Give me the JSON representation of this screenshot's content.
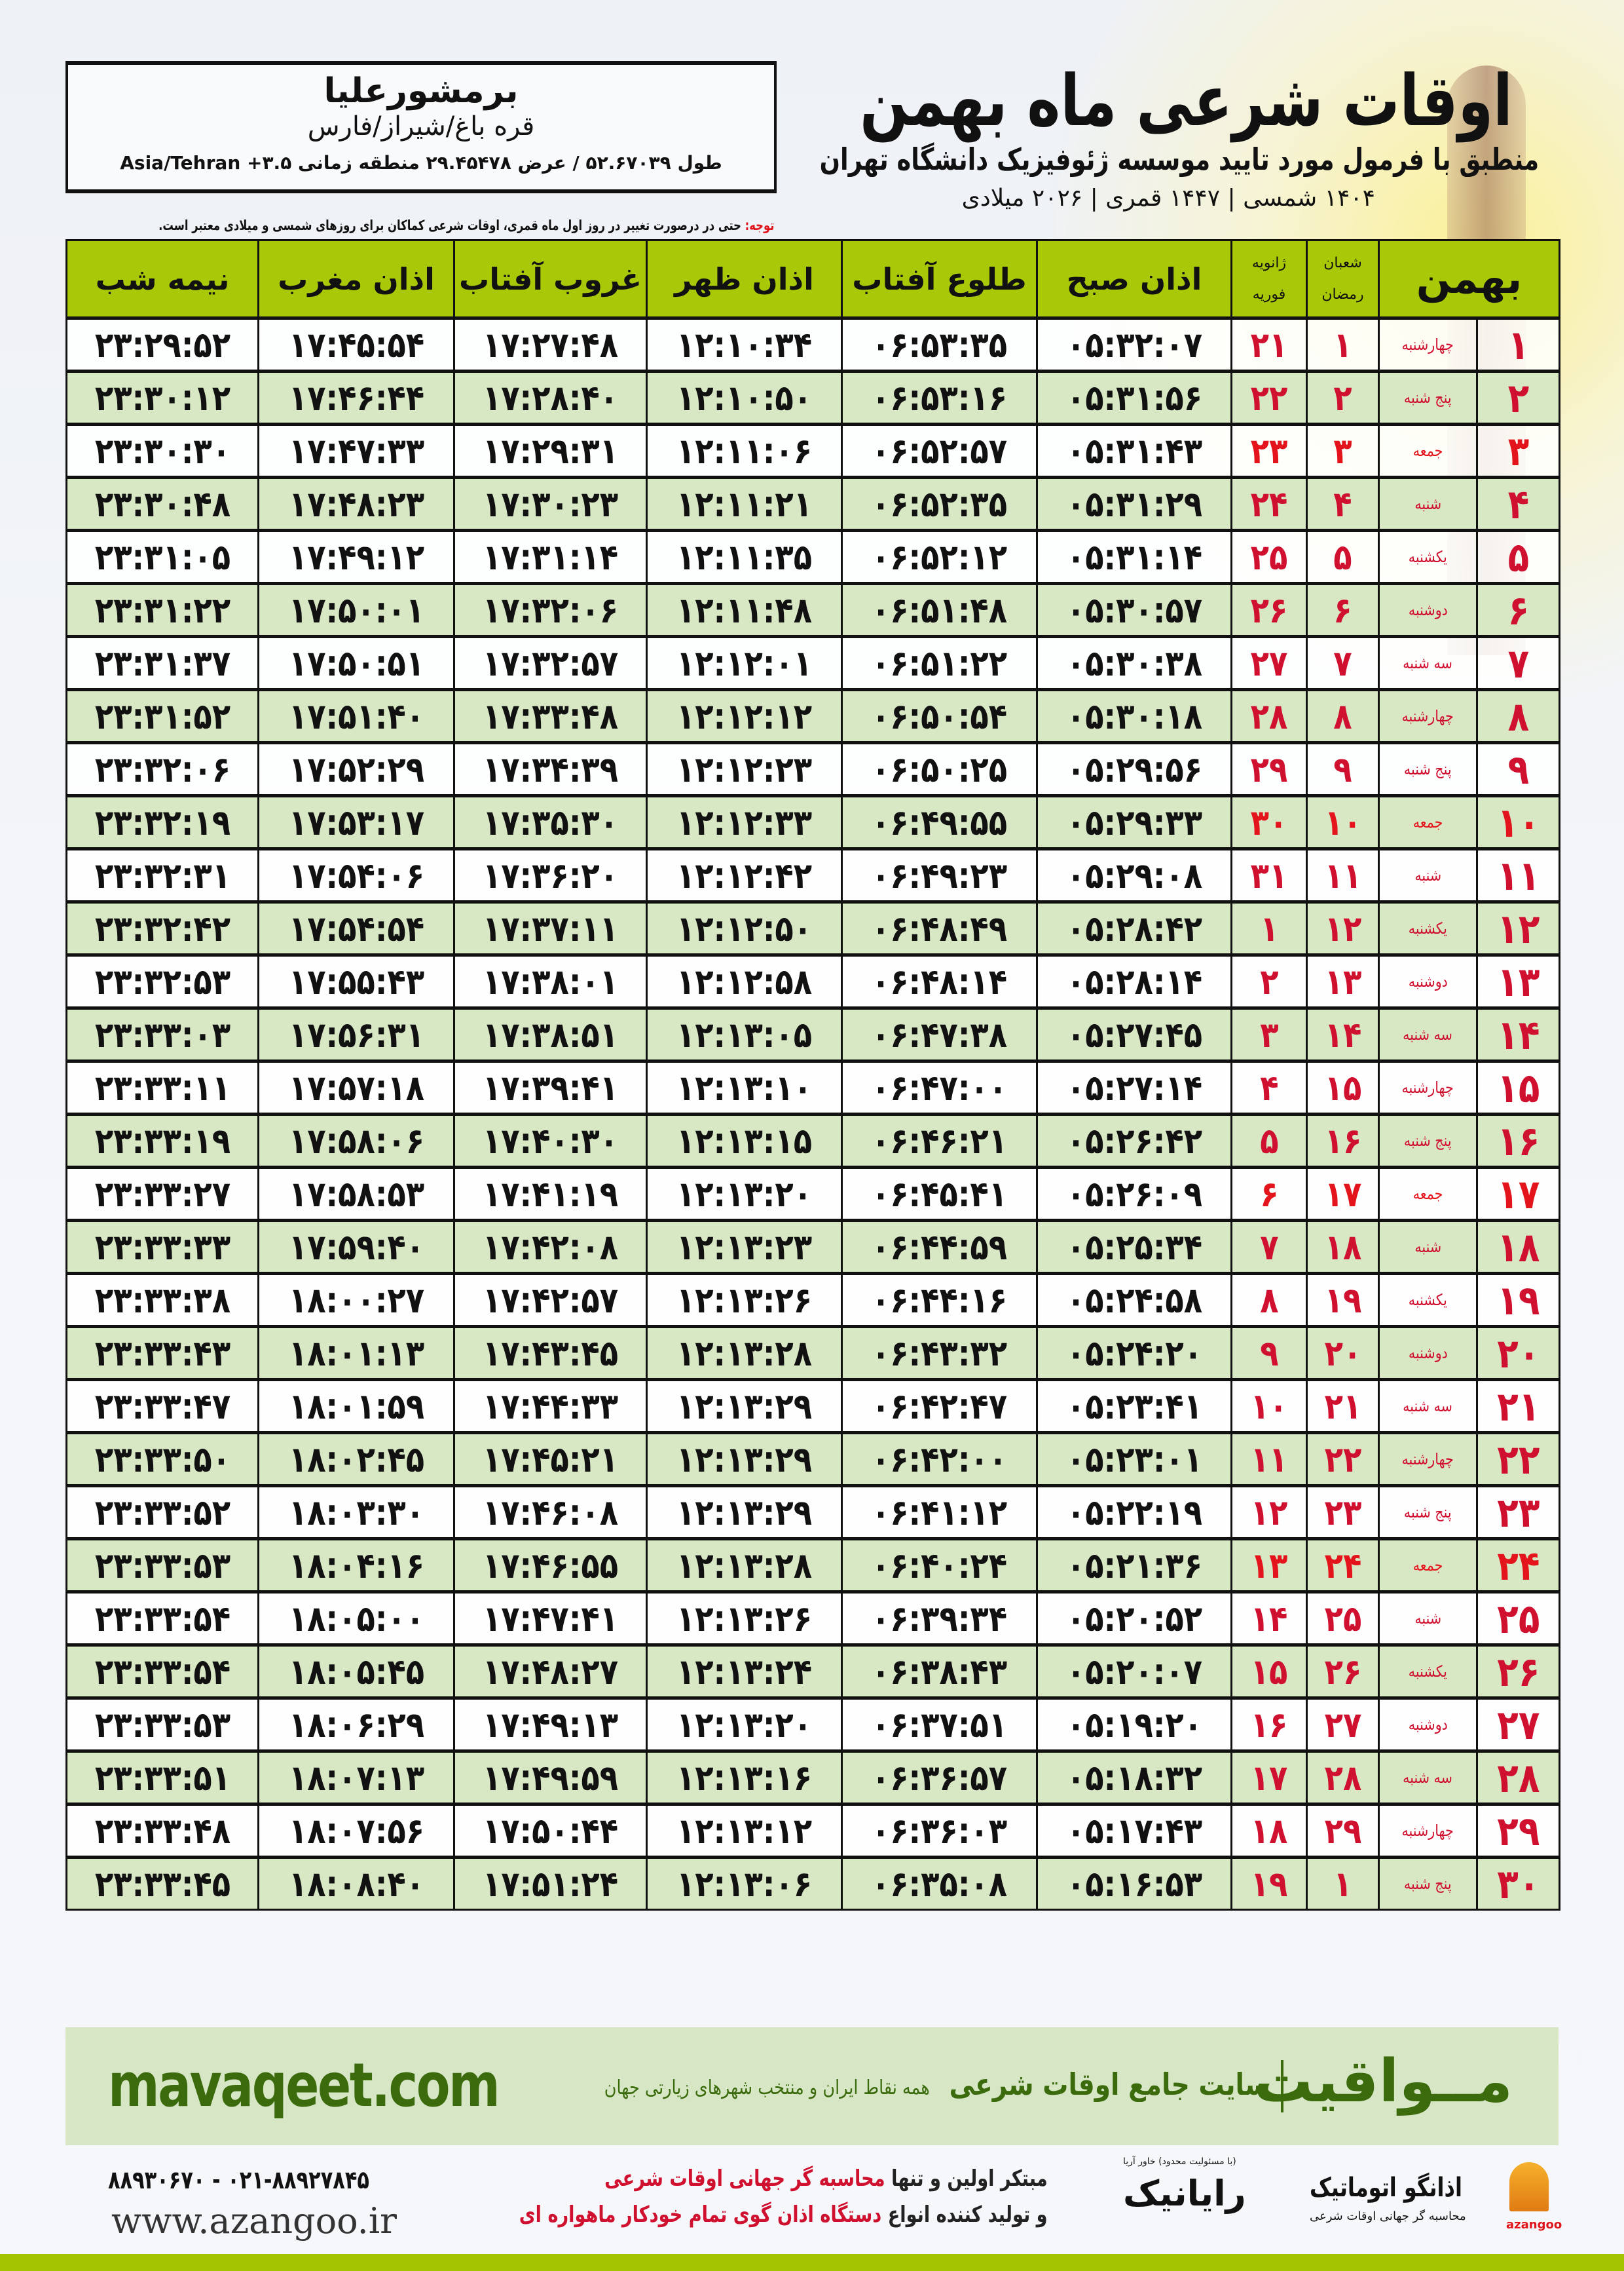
{
  "location": {
    "name": "برمشورعلیا",
    "region": "قره باغ/شیراز/فارس",
    "coords": "طول ۵۲.۶۷۰۳۹ / عرض ۲۹.۴۵۴۷۸ منطقه زمانی ۳.۵+ Asia/Tehran"
  },
  "header": {
    "title": "اوقات شرعی ماه بهمن",
    "subtitle": "منطبق با فرمول مورد تایید موسسه ژئوفیزیک دانشگاه تهران",
    "years": "۱۴۰۴ شمسی | ۱۴۴۷ قمری | ۲۰۲۶ میلادی"
  },
  "notice": {
    "label": "توجه:",
    "text": " حتی در درصورت تغییر در روز اول ماه قمری، اوقات شرعی کماکان برای روزهای شمسی و میلادی معتبر است."
  },
  "table": {
    "columns": {
      "month": "بهمن",
      "hijri_top": "شعبان",
      "hijri_bottom": "رمضان",
      "greg_top": "ژانویه",
      "greg_bottom": "فوریه",
      "fajr": "اذان صبح",
      "sunrise": "طلوع آفتاب",
      "dhuhr": "اذان ظهر",
      "sunset": "غروب آفتاب",
      "maghrib": "اذان مغرب",
      "midnight": "نیمه شب"
    },
    "holiday_color": "#e3141b",
    "rows": [
      {
        "day": "۱",
        "weekday": "چهارشنبه",
        "hijri": "۱",
        "greg": "۲۱",
        "fajr": "۰۵:۳۲:۰۷",
        "sunrise": "۰۶:۵۳:۳۵",
        "dhuhr": "۱۲:۱۰:۳۴",
        "sunset": "۱۷:۲۷:۴۸",
        "maghrib": "۱۷:۴۵:۵۴",
        "midnight": "۲۳:۲۹:۵۲"
      },
      {
        "day": "۲",
        "weekday": "پنج شنبه",
        "hijri": "۲",
        "greg": "۲۲",
        "fajr": "۰۵:۳۱:۵۶",
        "sunrise": "۰۶:۵۳:۱۶",
        "dhuhr": "۱۲:۱۰:۵۰",
        "sunset": "۱۷:۲۸:۴۰",
        "maghrib": "۱۷:۴۶:۴۴",
        "midnight": "۲۳:۳۰:۱۲"
      },
      {
        "day": "۳",
        "weekday": "جمعه",
        "holiday": true,
        "hijri": "۳",
        "greg": "۲۳",
        "fajr": "۰۵:۳۱:۴۳",
        "sunrise": "۰۶:۵۲:۵۷",
        "dhuhr": "۱۲:۱۱:۰۶",
        "sunset": "۱۷:۲۹:۳۱",
        "maghrib": "۱۷:۴۷:۳۳",
        "midnight": "۲۳:۳۰:۳۰"
      },
      {
        "day": "۴",
        "weekday": "شنبه",
        "hijri": "۴",
        "greg": "۲۴",
        "fajr": "۰۵:۳۱:۲۹",
        "sunrise": "۰۶:۵۲:۳۵",
        "dhuhr": "۱۲:۱۱:۲۱",
        "sunset": "۱۷:۳۰:۲۳",
        "maghrib": "۱۷:۴۸:۲۳",
        "midnight": "۲۳:۳۰:۴۸"
      },
      {
        "day": "۵",
        "weekday": "یکشنبه",
        "hijri": "۵",
        "greg": "۲۵",
        "fajr": "۰۵:۳۱:۱۴",
        "sunrise": "۰۶:۵۲:۱۲",
        "dhuhr": "۱۲:۱۱:۳۵",
        "sunset": "۱۷:۳۱:۱۴",
        "maghrib": "۱۷:۴۹:۱۲",
        "midnight": "۲۳:۳۱:۰۵"
      },
      {
        "day": "۶",
        "weekday": "دوشنبه",
        "hijri": "۶",
        "greg": "۲۶",
        "fajr": "۰۵:۳۰:۵۷",
        "sunrise": "۰۶:۵۱:۴۸",
        "dhuhr": "۱۲:۱۱:۴۸",
        "sunset": "۱۷:۳۲:۰۶",
        "maghrib": "۱۷:۵۰:۰۱",
        "midnight": "۲۳:۳۱:۲۲"
      },
      {
        "day": "۷",
        "weekday": "سه شنبه",
        "hijri": "۷",
        "greg": "۲۷",
        "fajr": "۰۵:۳۰:۳۸",
        "sunrise": "۰۶:۵۱:۲۲",
        "dhuhr": "۱۲:۱۲:۰۱",
        "sunset": "۱۷:۳۲:۵۷",
        "maghrib": "۱۷:۵۰:۵۱",
        "midnight": "۲۳:۳۱:۳۷"
      },
      {
        "day": "۸",
        "weekday": "چهارشنبه",
        "hijri": "۸",
        "greg": "۲۸",
        "fajr": "۰۵:۳۰:۱۸",
        "sunrise": "۰۶:۵۰:۵۴",
        "dhuhr": "۱۲:۱۲:۱۲",
        "sunset": "۱۷:۳۳:۴۸",
        "maghrib": "۱۷:۵۱:۴۰",
        "midnight": "۲۳:۳۱:۵۲"
      },
      {
        "day": "۹",
        "weekday": "پنج شنبه",
        "hijri": "۹",
        "greg": "۲۹",
        "fajr": "۰۵:۲۹:۵۶",
        "sunrise": "۰۶:۵۰:۲۵",
        "dhuhr": "۱۲:۱۲:۲۳",
        "sunset": "۱۷:۳۴:۳۹",
        "maghrib": "۱۷:۵۲:۲۹",
        "midnight": "۲۳:۳۲:۰۶"
      },
      {
        "day": "۱۰",
        "weekday": "جمعه",
        "holiday": true,
        "hijri": "۱۰",
        "greg": "۳۰",
        "fajr": "۰۵:۲۹:۳۳",
        "sunrise": "۰۶:۴۹:۵۵",
        "dhuhr": "۱۲:۱۲:۳۳",
        "sunset": "۱۷:۳۵:۳۰",
        "maghrib": "۱۷:۵۳:۱۷",
        "midnight": "۲۳:۳۲:۱۹"
      },
      {
        "day": "۱۱",
        "weekday": "شنبه",
        "hijri": "۱۱",
        "greg": "۳۱",
        "fajr": "۰۵:۲۹:۰۸",
        "sunrise": "۰۶:۴۹:۲۳",
        "dhuhr": "۱۲:۱۲:۴۲",
        "sunset": "۱۷:۳۶:۲۰",
        "maghrib": "۱۷:۵۴:۰۶",
        "midnight": "۲۳:۳۲:۳۱"
      },
      {
        "day": "۱۲",
        "weekday": "یکشنبه",
        "hijri": "۱۲",
        "greg": "۱",
        "fajr": "۰۵:۲۸:۴۲",
        "sunrise": "۰۶:۴۸:۴۹",
        "dhuhr": "۱۲:۱۲:۵۰",
        "sunset": "۱۷:۳۷:۱۱",
        "maghrib": "۱۷:۵۴:۵۴",
        "midnight": "۲۳:۳۲:۴۲"
      },
      {
        "day": "۱۳",
        "weekday": "دوشنبه",
        "hijri": "۱۳",
        "greg": "۲",
        "fajr": "۰۵:۲۸:۱۴",
        "sunrise": "۰۶:۴۸:۱۴",
        "dhuhr": "۱۲:۱۲:۵۸",
        "sunset": "۱۷:۳۸:۰۱",
        "maghrib": "۱۷:۵۵:۴۳",
        "midnight": "۲۳:۳۲:۵۳"
      },
      {
        "day": "۱۴",
        "weekday": "سه شنبه",
        "hijri": "۱۴",
        "greg": "۳",
        "fajr": "۰۵:۲۷:۴۵",
        "sunrise": "۰۶:۴۷:۳۸",
        "dhuhr": "۱۲:۱۳:۰۵",
        "sunset": "۱۷:۳۸:۵۱",
        "maghrib": "۱۷:۵۶:۳۱",
        "midnight": "۲۳:۳۳:۰۳"
      },
      {
        "day": "۱۵",
        "weekday": "چهارشنبه",
        "hijri": "۱۵",
        "greg": "۴",
        "fajr": "۰۵:۲۷:۱۴",
        "sunrise": "۰۶:۴۷:۰۰",
        "dhuhr": "۱۲:۱۳:۱۰",
        "sunset": "۱۷:۳۹:۴۱",
        "maghrib": "۱۷:۵۷:۱۸",
        "midnight": "۲۳:۳۳:۱۱"
      },
      {
        "day": "۱۶",
        "weekday": "پنج شنبه",
        "hijri": "۱۶",
        "greg": "۵",
        "fajr": "۰۵:۲۶:۴۲",
        "sunrise": "۰۶:۴۶:۲۱",
        "dhuhr": "۱۲:۱۳:۱۵",
        "sunset": "۱۷:۴۰:۳۰",
        "maghrib": "۱۷:۵۸:۰۶",
        "midnight": "۲۳:۳۳:۱۹"
      },
      {
        "day": "۱۷",
        "weekday": "جمعه",
        "holiday": true,
        "hijri": "۱۷",
        "greg": "۶",
        "fajr": "۰۵:۲۶:۰۹",
        "sunrise": "۰۶:۴۵:۴۱",
        "dhuhr": "۱۲:۱۳:۲۰",
        "sunset": "۱۷:۴۱:۱۹",
        "maghrib": "۱۷:۵۸:۵۳",
        "midnight": "۲۳:۳۳:۲۷"
      },
      {
        "day": "۱۸",
        "weekday": "شنبه",
        "hijri": "۱۸",
        "greg": "۷",
        "fajr": "۰۵:۲۵:۳۴",
        "sunrise": "۰۶:۴۴:۵۹",
        "dhuhr": "۱۲:۱۳:۲۳",
        "sunset": "۱۷:۴۲:۰۸",
        "maghrib": "۱۷:۵۹:۴۰",
        "midnight": "۲۳:۳۳:۳۳"
      },
      {
        "day": "۱۹",
        "weekday": "یکشنبه",
        "hijri": "۱۹",
        "greg": "۸",
        "fajr": "۰۵:۲۴:۵۸",
        "sunrise": "۰۶:۴۴:۱۶",
        "dhuhr": "۱۲:۱۳:۲۶",
        "sunset": "۱۷:۴۲:۵۷",
        "maghrib": "۱۸:۰۰:۲۷",
        "midnight": "۲۳:۳۳:۳۸"
      },
      {
        "day": "۲۰",
        "weekday": "دوشنبه",
        "hijri": "۲۰",
        "greg": "۹",
        "fajr": "۰۵:۲۴:۲۰",
        "sunrise": "۰۶:۴۳:۳۲",
        "dhuhr": "۱۲:۱۳:۲۸",
        "sunset": "۱۷:۴۳:۴۵",
        "maghrib": "۱۸:۰۱:۱۳",
        "midnight": "۲۳:۳۳:۴۳"
      },
      {
        "day": "۲۱",
        "weekday": "سه شنبه",
        "hijri": "۲۱",
        "greg": "۱۰",
        "fajr": "۰۵:۲۳:۴۱",
        "sunrise": "۰۶:۴۲:۴۷",
        "dhuhr": "۱۲:۱۳:۲۹",
        "sunset": "۱۷:۴۴:۳۳",
        "maghrib": "۱۸:۰۱:۵۹",
        "midnight": "۲۳:۳۳:۴۷"
      },
      {
        "day": "۲۲",
        "weekday": "چهارشنبه",
        "hijri": "۲۲",
        "greg": "۱۱",
        "fajr": "۰۵:۲۳:۰۱",
        "sunrise": "۰۶:۴۲:۰۰",
        "dhuhr": "۱۲:۱۳:۲۹",
        "sunset": "۱۷:۴۵:۲۱",
        "maghrib": "۱۸:۰۲:۴۵",
        "midnight": "۲۳:۳۳:۵۰"
      },
      {
        "day": "۲۳",
        "weekday": "پنج شنبه",
        "hijri": "۲۳",
        "greg": "۱۲",
        "fajr": "۰۵:۲۲:۱۹",
        "sunrise": "۰۶:۴۱:۱۲",
        "dhuhr": "۱۲:۱۳:۲۹",
        "sunset": "۱۷:۴۶:۰۸",
        "maghrib": "۱۸:۰۳:۳۰",
        "midnight": "۲۳:۳۳:۵۲"
      },
      {
        "day": "۲۴",
        "weekday": "جمعه",
        "holiday": true,
        "hijri": "۲۴",
        "greg": "۱۳",
        "fajr": "۰۵:۲۱:۳۶",
        "sunrise": "۰۶:۴۰:۲۴",
        "dhuhr": "۱۲:۱۳:۲۸",
        "sunset": "۱۷:۴۶:۵۵",
        "maghrib": "۱۸:۰۴:۱۶",
        "midnight": "۲۳:۳۳:۵۳"
      },
      {
        "day": "۲۵",
        "weekday": "شنبه",
        "hijri": "۲۵",
        "greg": "۱۴",
        "fajr": "۰۵:۲۰:۵۲",
        "sunrise": "۰۶:۳۹:۳۴",
        "dhuhr": "۱۲:۱۳:۲۶",
        "sunset": "۱۷:۴۷:۴۱",
        "maghrib": "۱۸:۰۵:۰۰",
        "midnight": "۲۳:۳۳:۵۴"
      },
      {
        "day": "۲۶",
        "weekday": "یکشنبه",
        "hijri": "۲۶",
        "greg": "۱۵",
        "fajr": "۰۵:۲۰:۰۷",
        "sunrise": "۰۶:۳۸:۴۳",
        "dhuhr": "۱۲:۱۳:۲۴",
        "sunset": "۱۷:۴۸:۲۷",
        "maghrib": "۱۸:۰۵:۴۵",
        "midnight": "۲۳:۳۳:۵۴"
      },
      {
        "day": "۲۷",
        "weekday": "دوشنبه",
        "hijri": "۲۷",
        "greg": "۱۶",
        "fajr": "۰۵:۱۹:۲۰",
        "sunrise": "۰۶:۳۷:۵۱",
        "dhuhr": "۱۲:۱۳:۲۰",
        "sunset": "۱۷:۴۹:۱۳",
        "maghrib": "۱۸:۰۶:۲۹",
        "midnight": "۲۳:۳۳:۵۳"
      },
      {
        "day": "۲۸",
        "weekday": "سه شنبه",
        "hijri": "۲۸",
        "greg": "۱۷",
        "fajr": "۰۵:۱۸:۳۲",
        "sunrise": "۰۶:۳۶:۵۷",
        "dhuhr": "۱۲:۱۳:۱۶",
        "sunset": "۱۷:۴۹:۵۹",
        "maghrib": "۱۸:۰۷:۱۳",
        "midnight": "۲۳:۳۳:۵۱"
      },
      {
        "day": "۲۹",
        "weekday": "چهارشنبه",
        "hijri": "۲۹",
        "greg": "۱۸",
        "fajr": "۰۵:۱۷:۴۳",
        "sunrise": "۰۶:۳۶:۰۳",
        "dhuhr": "۱۲:۱۳:۱۲",
        "sunset": "۱۷:۵۰:۴۴",
        "maghrib": "۱۸:۰۷:۵۶",
        "midnight": "۲۳:۳۳:۴۸"
      },
      {
        "day": "۳۰",
        "weekday": "پنج شنبه",
        "hijri": "۱",
        "greg": "۱۹",
        "fajr": "۰۵:۱۶:۵۳",
        "sunrise": "۰۶:۳۵:۰۸",
        "dhuhr": "۱۲:۱۳:۰۶",
        "sunset": "۱۷:۵۱:۲۴",
        "maghrib": "۱۸:۰۸:۴۰",
        "midnight": "۲۳:۳۳:۴۵"
      }
    ]
  },
  "banner": {
    "logo": "مــواقیت",
    "tagline": "سایت جامع اوقات شرعی",
    "tagline2": "همه نقاط ایران و منتخب شهرهای زیارتی جهان",
    "url": "mavaqeet.com",
    "color": "#3b6b0d"
  },
  "footer": {
    "phone": "۰۲۱-۸۸۹۲۷۸۴۵ - ۸۸۹۳۰۶۷۰",
    "website": "www.azangoo.ir",
    "line1_a": "مبتکر اولین و تنها ",
    "line1_b": "محاسبه گر جهانی اوقات شرعی",
    "line2_a": "و تولید کننده انواع ",
    "line2_b": "دستگاه اذان گوی تمام خودکار ماهواره ای",
    "rayanic": "رایانیک",
    "rayanic_small": "(با مسئولیت محدود) خاور آریا",
    "azangoo": "اذانگو اتوماتیک",
    "azangoo_sub": "محاسبه گر جهانی اوقات شرعی",
    "azangoo_en": "azangoo",
    "accent": "#a5c400"
  }
}
